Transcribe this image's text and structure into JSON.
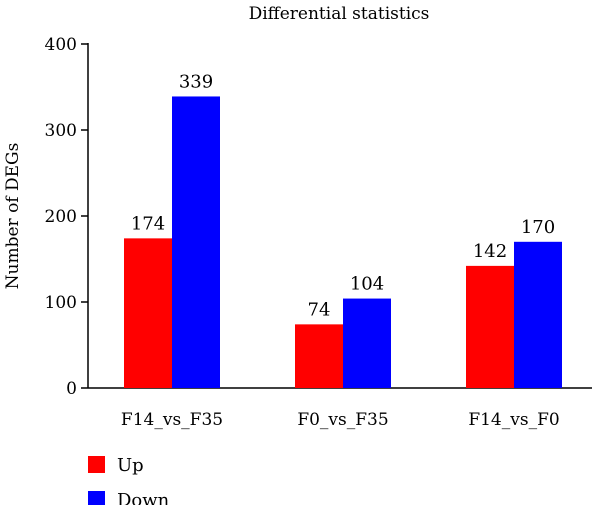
{
  "chart_data": {
    "type": "bar",
    "title": "Differential statistics",
    "xlabel": "",
    "ylabel": "Number of DEGs",
    "ylim": [
      0,
      400
    ],
    "yticks": [
      0,
      100,
      200,
      300,
      400
    ],
    "categories": [
      "F14_vs_F35",
      "F0_vs_F35",
      "F14_vs_F0"
    ],
    "series": [
      {
        "name": "Up",
        "color": "#ff0000",
        "values": [
          174,
          74,
          142
        ]
      },
      {
        "name": "Down",
        "color": "#0000ff",
        "values": [
          339,
          104,
          170
        ]
      }
    ],
    "legend_position": "bottom-left",
    "grid": false
  }
}
